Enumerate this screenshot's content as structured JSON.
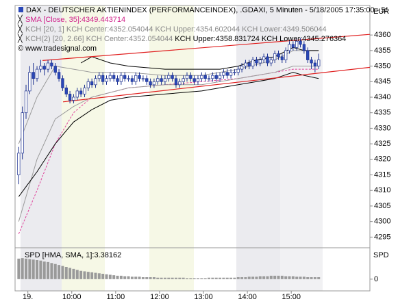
{
  "chart_data": [
    {
      "type": "candlestick",
      "title": "DAX  - DEUTSCHER AKTIENINDEX (PERFORMANCEINDEX), .GDAXI, 5 Minuten - 5/18/2005 17:35:00 - 5/",
      "currency": "EUR",
      "watermark": "© www.tradesignal.com",
      "xlim": [
        -1,
        96
      ],
      "ylim": [
        4292,
        4369.5
      ],
      "yticks": [
        4295,
        4300,
        4305,
        4310,
        4315,
        4320,
        4325,
        4330,
        4335,
        4340,
        4345,
        4350,
        4355,
        4360
      ],
      "xticks": [
        {
          "value": 2.5,
          "label": "19."
        },
        {
          "value": 14.5,
          "label": "10:00"
        },
        {
          "value": 26.5,
          "label": "11:00"
        },
        {
          "value": 38.5,
          "label": "12:00"
        },
        {
          "value": 50.5,
          "label": "13:00"
        },
        {
          "value": 62.5,
          "label": "14:00"
        },
        {
          "value": 74.5,
          "label": "15:00"
        }
      ],
      "colors": {
        "up": "#ffffff",
        "down": "#2a48b8",
        "outline": "#1a2f8f"
      },
      "ohlc": [
        [
          4315,
          4324,
          4312,
          4322
        ],
        [
          4322,
          4337,
          4320,
          4335
        ],
        [
          4335,
          4344,
          4333,
          4342
        ],
        [
          4342,
          4350,
          4341,
          4348
        ],
        [
          4348,
          4351,
          4344,
          4346
        ],
        [
          4346,
          4350,
          4345,
          4349
        ],
        [
          4349,
          4352,
          4348,
          4350
        ],
        [
          4350,
          4351,
          4347,
          4349
        ],
        [
          4349,
          4352,
          4348,
          4351
        ],
        [
          4351,
          4352,
          4349,
          4350
        ],
        [
          4350,
          4351,
          4347,
          4348
        ],
        [
          4348,
          4349,
          4345,
          4346
        ],
        [
          4346,
          4347,
          4342,
          4343
        ],
        [
          4343,
          4344,
          4340,
          4341
        ],
        [
          4341,
          4342,
          4338,
          4339
        ],
        [
          4339,
          4341,
          4338,
          4340
        ],
        [
          4340,
          4343,
          4339,
          4342
        ],
        [
          4342,
          4343,
          4340,
          4341
        ],
        [
          4341,
          4344,
          4340,
          4343
        ],
        [
          4343,
          4346,
          4342,
          4345
        ],
        [
          4345,
          4346,
          4343,
          4344
        ],
        [
          4344,
          4347,
          4343,
          4346
        ],
        [
          4346,
          4348,
          4345,
          4347
        ],
        [
          4347,
          4348,
          4344,
          4345
        ],
        [
          4345,
          4347,
          4344,
          4346
        ],
        [
          4346,
          4348,
          4345,
          4347
        ],
        [
          4347,
          4348,
          4345,
          4346
        ],
        [
          4346,
          4347,
          4344,
          4345
        ],
        [
          4345,
          4348,
          4344,
          4347
        ],
        [
          4347,
          4348,
          4345,
          4346
        ],
        [
          4346,
          4347,
          4345,
          4346
        ],
        [
          4346,
          4347,
          4344,
          4345
        ],
        [
          4345,
          4348,
          4344,
          4347
        ],
        [
          4347,
          4348,
          4345,
          4346
        ],
        [
          4346,
          4347,
          4345,
          4346
        ],
        [
          4346,
          4347,
          4344,
          4345
        ],
        [
          4345,
          4346,
          4343,
          4344
        ],
        [
          4344,
          4346,
          4343,
          4345
        ],
        [
          4345,
          4347,
          4344,
          4346
        ],
        [
          4346,
          4347,
          4344,
          4345
        ],
        [
          4345,
          4347,
          4344,
          4346
        ],
        [
          4346,
          4348,
          4345,
          4347
        ],
        [
          4347,
          4348,
          4345,
          4346
        ],
        [
          4346,
          4347,
          4343,
          4344
        ],
        [
          4344,
          4346,
          4343,
          4345
        ],
        [
          4345,
          4347,
          4344,
          4346
        ],
        [
          4346,
          4348,
          4345,
          4347
        ],
        [
          4347,
          4348,
          4345,
          4346
        ],
        [
          4346,
          4347,
          4344,
          4345
        ],
        [
          4345,
          4347,
          4344,
          4346
        ],
        [
          4346,
          4348,
          4345,
          4347
        ],
        [
          4347,
          4348,
          4345,
          4346
        ],
        [
          4346,
          4347,
          4345,
          4346
        ],
        [
          4346,
          4348,
          4345,
          4347
        ],
        [
          4347,
          4348,
          4345,
          4346
        ],
        [
          4346,
          4348,
          4345,
          4347
        ],
        [
          4347,
          4349,
          4346,
          4348
        ],
        [
          4348,
          4349,
          4346,
          4347
        ],
        [
          4347,
          4349,
          4346,
          4348
        ],
        [
          4348,
          4349,
          4347,
          4348
        ],
        [
          4348,
          4350,
          4347,
          4349
        ],
        [
          4349,
          4351,
          4348,
          4350
        ],
        [
          4350,
          4352,
          4349,
          4351
        ],
        [
          4351,
          4352,
          4349,
          4350
        ],
        [
          4350,
          4353,
          4349,
          4352
        ],
        [
          4352,
          4353,
          4350,
          4351
        ],
        [
          4351,
          4353,
          4350,
          4352
        ],
        [
          4352,
          4354,
          4351,
          4353
        ],
        [
          4353,
          4354,
          4350,
          4351
        ],
        [
          4351,
          4353,
          4350,
          4352
        ],
        [
          4352,
          4355,
          4351,
          4354
        ],
        [
          4354,
          4355,
          4352,
          4353
        ],
        [
          4353,
          4354,
          4351,
          4352
        ],
        [
          4352,
          4356,
          4351,
          4355
        ],
        [
          4355,
          4358,
          4354,
          4357
        ],
        [
          4357,
          4358,
          4355,
          4356
        ],
        [
          4356,
          4359,
          4355,
          4358
        ],
        [
          4358,
          4359,
          4356,
          4357
        ],
        [
          4357,
          4358,
          4354,
          4355
        ],
        [
          4355,
          4356,
          4351,
          4352
        ],
        [
          4352,
          4353,
          4349,
          4351
        ],
        [
          4351,
          4352,
          4348,
          4350
        ],
        [
          4350,
          4354,
          4349,
          4352
        ]
      ],
      "indicators": [
        {
          "label_parts": [
            "SMA [Close, 35]:4349.443714"
          ],
          "label_colors": [
            "#d0208a"
          ],
          "color": "#e0409a",
          "lines": [
            {
              "dash": true,
              "x": [
                0,
                5,
                10,
                15,
                20,
                30,
                40,
                50,
                60,
                70,
                75,
                82
              ],
              "values": [
                4296,
                4310,
                4325,
                4335,
                4340,
                4343,
                4344,
                4345,
                4346,
                4348,
                4349,
                4349
              ]
            }
          ]
        },
        {
          "label_parts": [
            "KCH [20, 1] KCH Center:4352.054044 KCH Upper:4354.602044 KCH Lower:4349.506044"
          ],
          "label_colors": [
            "#888888"
          ],
          "color": "#9a9a9a",
          "lines": [
            {
              "dash": false,
              "x": [
                0,
                5,
                10,
                15,
                20,
                30,
                40,
                50,
                60,
                70,
                75,
                82
              ],
              "values": [
                4325,
                4340,
                4350,
                4349,
                4348,
                4348,
                4347,
                4347,
                4349,
                4352,
                4355,
                4355
              ]
            },
            {
              "dash": false,
              "x": [
                0,
                5,
                10,
                15,
                20,
                30,
                40,
                50,
                60,
                70,
                75,
                82
              ],
              "values": [
                4300,
                4320,
                4333,
                4337,
                4340,
                4343,
                4344,
                4344,
                4346,
                4348,
                4350,
                4350
              ]
            }
          ]
        },
        {
          "label_parts": [
            "KCH(2) [20, 2.66] KCH Center:4352.054044 ",
            "KCH Upper:4358.831724 KCH Lower:4345.276364"
          ],
          "label_colors": [
            "#888888",
            "#000000"
          ],
          "color": "#000000",
          "lines": [
            {
              "dash": false,
              "x": [
                17,
                20,
                25,
                30,
                40,
                50,
                55,
                60,
                65,
                70,
                75,
                78,
                82
              ],
              "values": [
                4351,
                4353,
                4351,
                4350,
                4349,
                4349,
                4349,
                4350,
                4352,
                4353,
                4356,
                4355,
                4355
              ]
            },
            {
              "dash": false,
              "x": [
                0,
                5,
                10,
                15,
                20,
                25,
                30,
                40,
                50,
                60,
                65,
                70,
                75,
                78,
                82
              ],
              "values": [
                4308,
                4316,
                4325,
                4332,
                4336,
                4339,
                4340,
                4341,
                4342,
                4344,
                4345,
                4346,
                4348,
                4347,
                4346
              ]
            }
          ]
        }
      ],
      "trendlines": [
        {
          "color": "#e02020",
          "x": [
            6.5,
            96
          ],
          "values": [
            4351.8,
            4360.2
          ]
        },
        {
          "color": "#e02020",
          "x": [
            12.1,
            96
          ],
          "values": [
            4338.5,
            4349.6
          ]
        }
      ]
    },
    {
      "type": "bar",
      "title": "SPD [HMA, SMA, 1]:3.38162",
      "axis_label": "SPD",
      "color": "#9a9a9a",
      "xlim": [
        -1,
        96
      ],
      "ylim": [
        -2.4,
        6
      ],
      "yticks": [
        0
      ],
      "values": [
        4.2,
        4.3,
        4.2,
        4.1,
        4.0,
        3.9,
        3.8,
        3.6,
        3.5,
        3.3,
        3.1,
        2.9,
        2.7,
        2.5,
        2.3,
        2.1,
        1.9,
        1.7,
        1.6,
        1.5,
        1.4,
        1.3,
        1.2,
        1.1,
        1.0,
        0.9,
        0.8,
        0.7,
        0.7,
        0.6,
        0.6,
        0.5,
        0.5,
        0.5,
        0.4,
        0.4,
        0.4,
        0.4,
        0.3,
        0.3,
        0.3,
        0.3,
        0.3,
        0.3,
        0.3,
        0.3,
        0.2,
        0.2,
        0.2,
        0.2,
        0.2,
        0.2,
        0.3,
        0.3,
        0.3,
        0.3,
        0.3,
        0.3,
        0.3,
        0.3,
        0.4,
        0.4,
        0.4,
        0.5,
        0.5,
        0.5,
        0.6,
        0.6,
        0.6,
        0.7,
        0.7,
        0.7,
        0.7,
        0.6,
        0.6,
        0.6,
        0.5,
        0.5,
        0.5,
        0.4,
        0.4,
        0.4,
        0.4
      ]
    }
  ]
}
